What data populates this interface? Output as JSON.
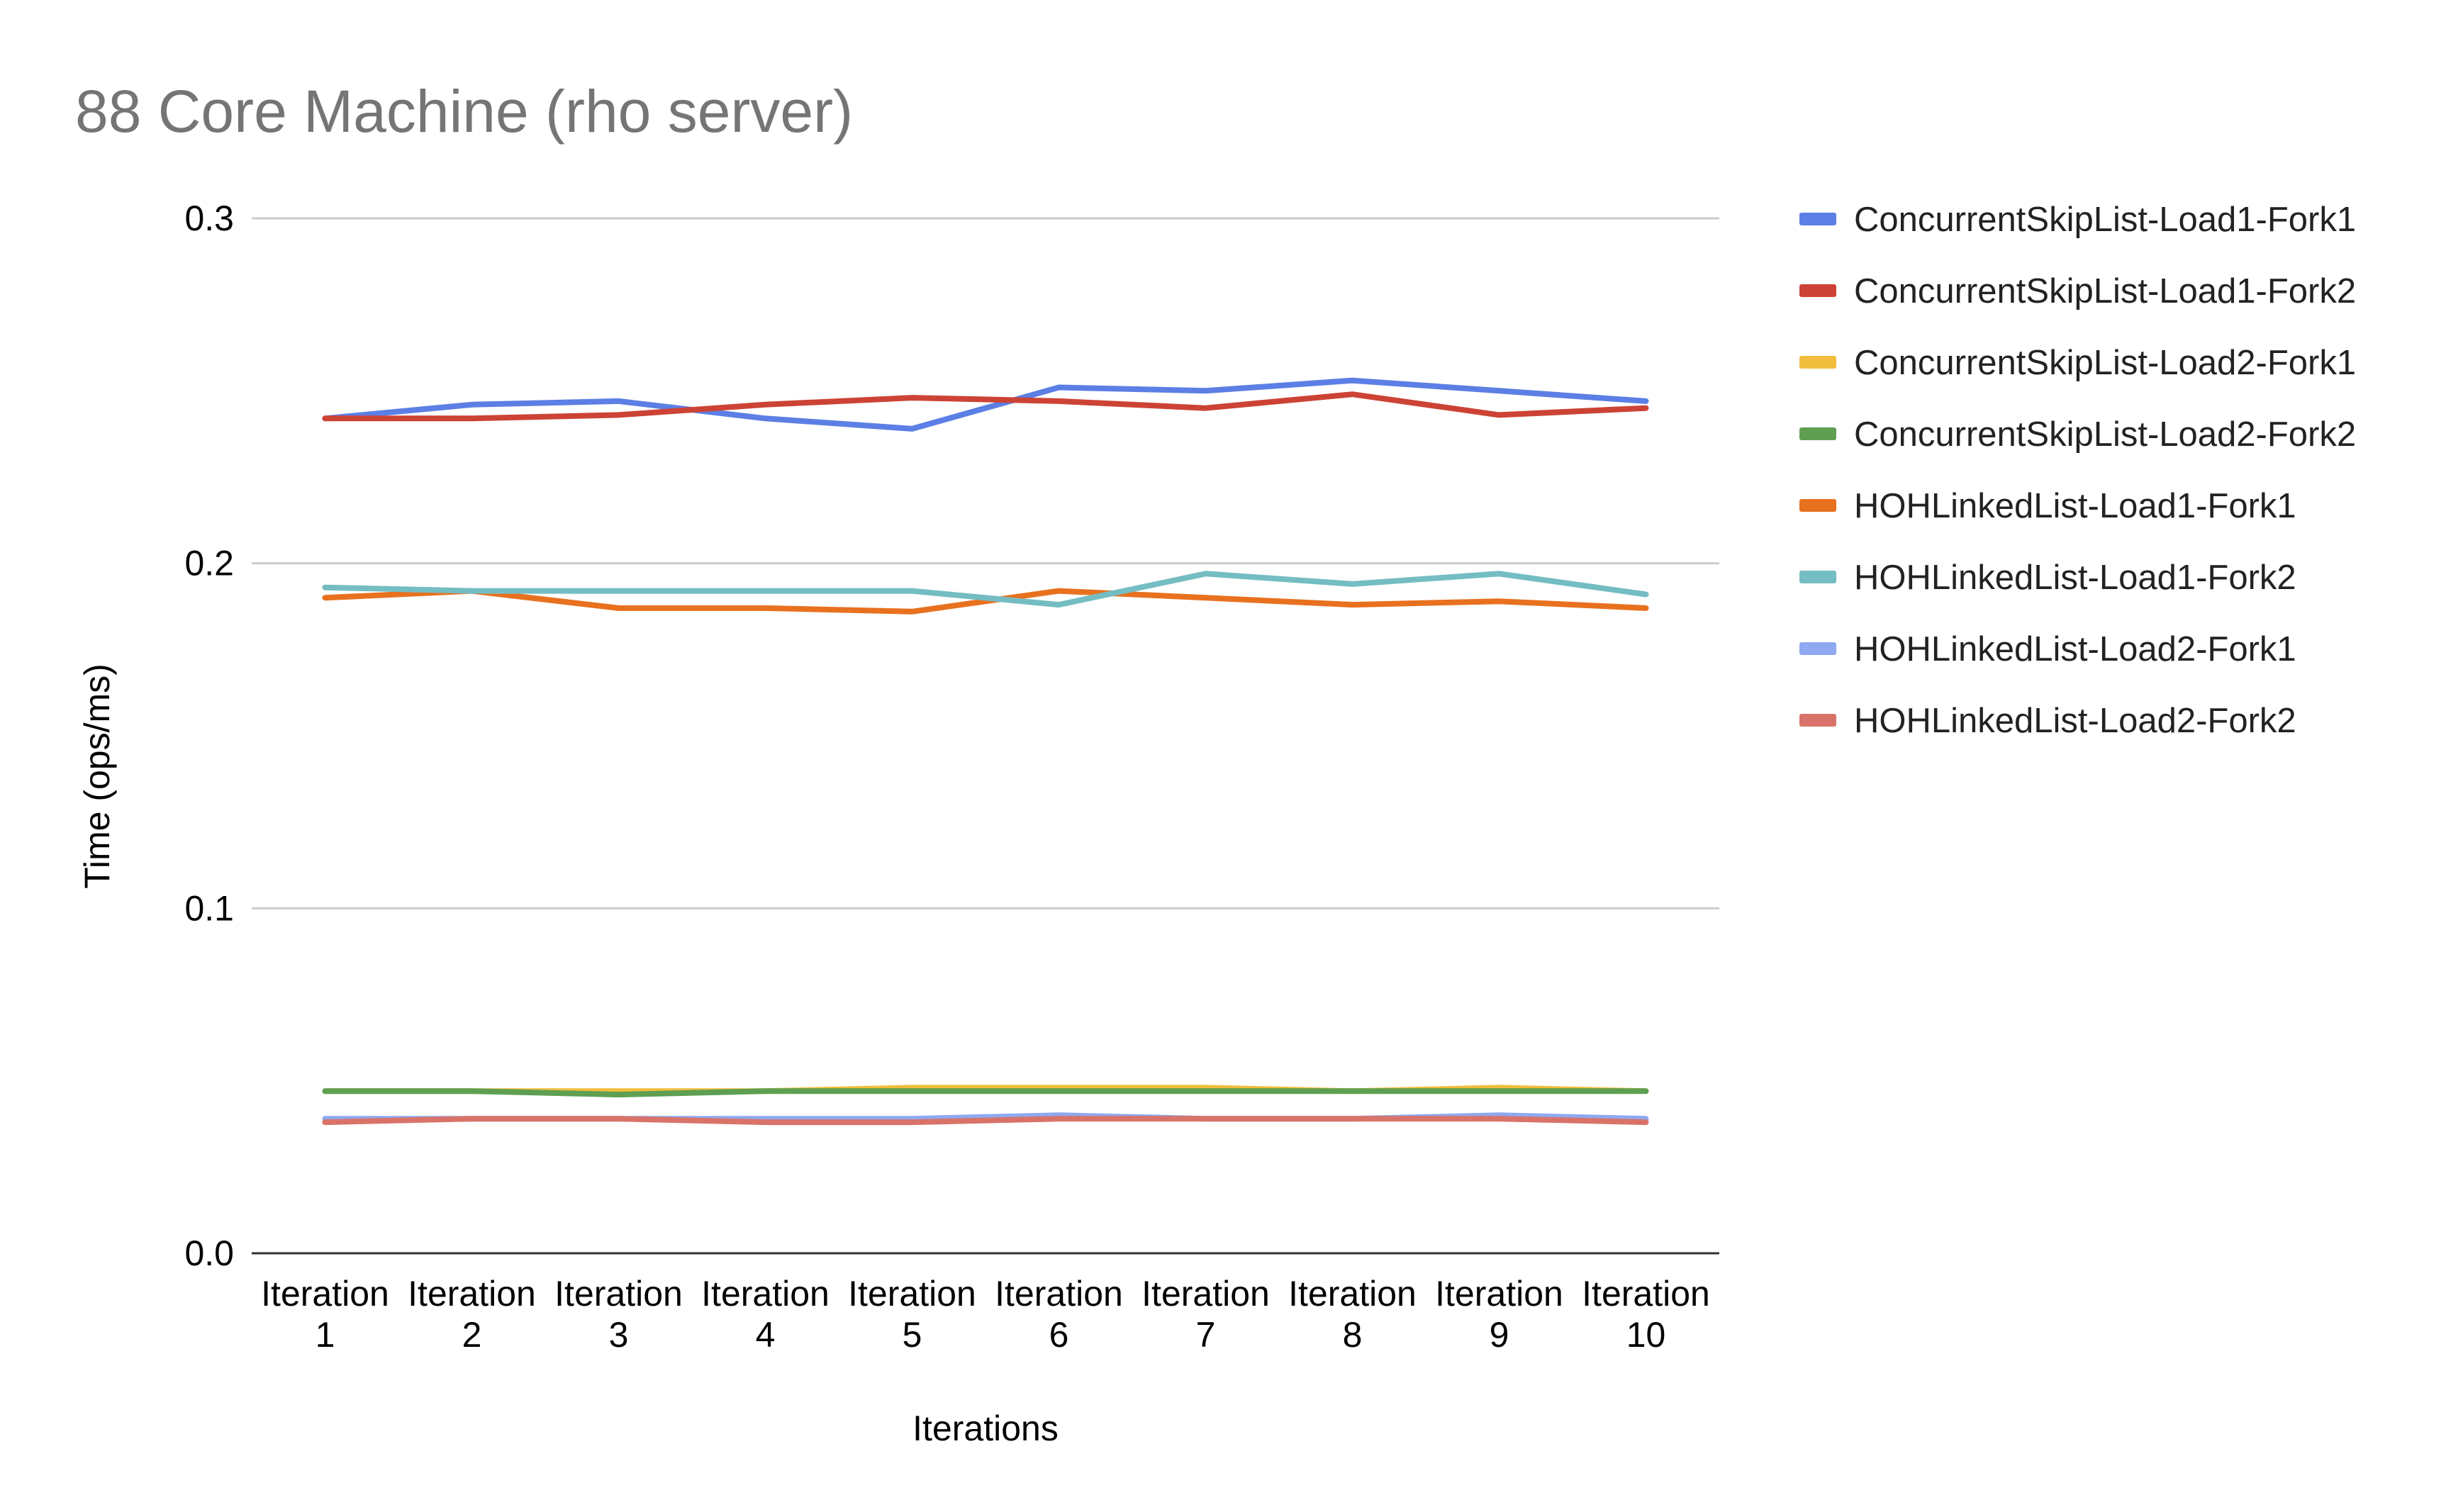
{
  "chart_data": {
    "type": "line",
    "title": "88 Core Machine (rho server)",
    "xlabel": "Iterations",
    "ylabel": "Time (ops/ms)",
    "ylim": [
      0,
      0.3
    ],
    "yticks": [
      "0.0",
      "0.1",
      "0.2",
      "0.3"
    ],
    "grid": true,
    "legend_position": "right",
    "categories": [
      [
        "Iteration",
        "1"
      ],
      [
        "Iteration",
        "2"
      ],
      [
        "Iteration",
        "3"
      ],
      [
        "Iteration",
        "4"
      ],
      [
        "Iteration",
        "5"
      ],
      [
        "Iteration",
        "6"
      ],
      [
        "Iteration",
        "7"
      ],
      [
        "Iteration",
        "8"
      ],
      [
        "Iteration",
        "9"
      ],
      [
        "Iteration",
        "10"
      ]
    ],
    "series": [
      {
        "name": "ConcurrentSkipList-Load1-Fork1",
        "color": "#5b7fe5",
        "values": [
          0.242,
          0.246,
          0.247,
          0.242,
          0.239,
          0.251,
          0.25,
          0.253,
          0.25,
          0.247
        ]
      },
      {
        "name": "ConcurrentSkipList-Load1-Fork2",
        "color": "#cc4335",
        "values": [
          0.242,
          0.242,
          0.243,
          0.246,
          0.248,
          0.247,
          0.245,
          0.249,
          0.243,
          0.245
        ]
      },
      {
        "name": "ConcurrentSkipList-Load2-Fork1",
        "color": "#f1bd3c",
        "values": [
          0.047,
          0.047,
          0.047,
          0.047,
          0.048,
          0.048,
          0.048,
          0.047,
          0.048,
          0.047
        ]
      },
      {
        "name": "ConcurrentSkipList-Load2-Fork2",
        "color": "#5e9f52",
        "values": [
          0.047,
          0.047,
          0.046,
          0.047,
          0.047,
          0.047,
          0.047,
          0.047,
          0.047,
          0.047
        ]
      },
      {
        "name": "HOHLinkedList-Load1-Fork1",
        "color": "#e8711f",
        "values": [
          0.19,
          0.192,
          0.187,
          0.187,
          0.186,
          0.192,
          0.19,
          0.188,
          0.189,
          0.187
        ]
      },
      {
        "name": "HOHLinkedList-Load1-Fork2",
        "color": "#74bdc2",
        "values": [
          0.193,
          0.192,
          0.192,
          0.192,
          0.192,
          0.188,
          0.197,
          0.194,
          0.197,
          0.191
        ]
      },
      {
        "name": "HOHLinkedList-Load2-Fork1",
        "color": "#8ea9f0",
        "values": [
          0.039,
          0.039,
          0.039,
          0.039,
          0.039,
          0.04,
          0.039,
          0.039,
          0.04,
          0.039
        ]
      },
      {
        "name": "HOHLinkedList-Load2-Fork2",
        "color": "#d9736a",
        "values": [
          0.038,
          0.039,
          0.039,
          0.038,
          0.038,
          0.039,
          0.039,
          0.039,
          0.039,
          0.038
        ]
      }
    ]
  }
}
